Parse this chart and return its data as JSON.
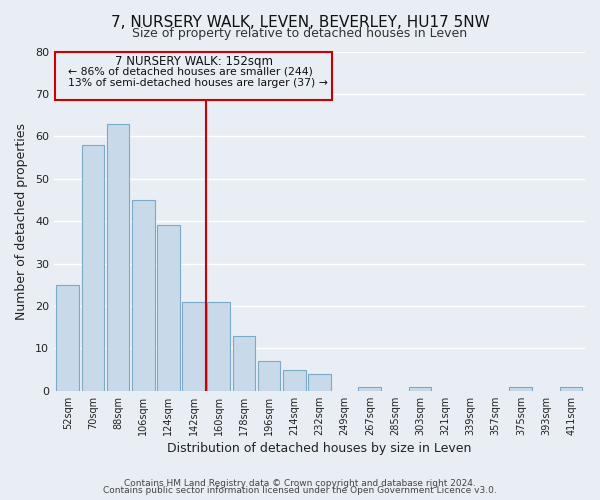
{
  "title": "7, NURSERY WALK, LEVEN, BEVERLEY, HU17 5NW",
  "subtitle": "Size of property relative to detached houses in Leven",
  "xlabel": "Distribution of detached houses by size in Leven",
  "ylabel": "Number of detached properties",
  "bar_color": "#c8daea",
  "bar_edge_color": "#7aaac8",
  "categories": [
    "52sqm",
    "70sqm",
    "88sqm",
    "106sqm",
    "124sqm",
    "142sqm",
    "160sqm",
    "178sqm",
    "196sqm",
    "214sqm",
    "232sqm",
    "249sqm",
    "267sqm",
    "285sqm",
    "303sqm",
    "321sqm",
    "339sqm",
    "357sqm",
    "375sqm",
    "393sqm",
    "411sqm"
  ],
  "values": [
    25,
    58,
    63,
    45,
    39,
    21,
    21,
    13,
    7,
    5,
    4,
    0,
    1,
    0,
    1,
    0,
    0,
    0,
    1,
    0,
    1
  ],
  "ylim": [
    0,
    80
  ],
  "yticks": [
    0,
    10,
    20,
    30,
    40,
    50,
    60,
    70,
    80
  ],
  "red_line_x": 5.5,
  "property_line_label": "7 NURSERY WALK: 152sqm",
  "annotation_line1": "← 86% of detached houses are smaller (244)",
  "annotation_line2": "13% of semi-detached houses are larger (37) →",
  "background_color": "#e8eef4",
  "grid_color": "#ffffff",
  "footer1": "Contains HM Land Registry data © Crown copyright and database right 2024.",
  "footer2": "Contains public sector information licensed under the Open Government Licence v3.0."
}
